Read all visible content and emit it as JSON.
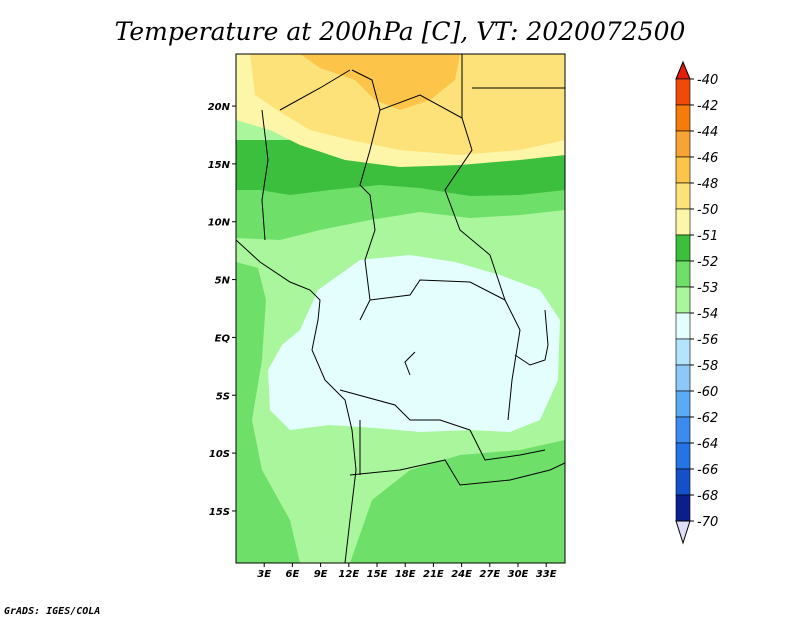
{
  "chart_data": {
    "type": "heatmap",
    "title": "Temperature at 200hPa [C], VT: 2020072500",
    "credit": "GrADS: IGES/COLA",
    "x_ticks": [
      "3E",
      "6E",
      "9E",
      "12E",
      "15E",
      "18E",
      "21E",
      "24E",
      "27E",
      "30E",
      "33E"
    ],
    "x_tick_values": [
      3,
      6,
      9,
      12,
      15,
      18,
      21,
      24,
      27,
      30,
      33
    ],
    "y_ticks": [
      "20N",
      "15N",
      "10N",
      "5N",
      "EQ",
      "5S",
      "10S",
      "15S"
    ],
    "y_tick_values": [
      20,
      15,
      10,
      5,
      0,
      -5,
      -10,
      -15
    ],
    "xlim": [
      0,
      35
    ],
    "ylim": [
      -19.5,
      24.5
    ],
    "colorbar": {
      "levels": [
        "-40",
        "-42",
        "-44",
        "-46",
        "-48",
        "-50",
        "-51",
        "-52",
        "-53",
        "-54",
        "-56",
        "-58",
        "-60",
        "-62",
        "-64",
        "-66",
        "-68",
        "-70"
      ],
      "colors": [
        "#e81c0a",
        "#f04a0a",
        "#f47c0c",
        "#f8a434",
        "#fcc448",
        "#fde27a",
        "#fdf6a8",
        "#3cbf3c",
        "#6ee06a",
        "#aaf69c",
        "#e4fefe",
        "#b4e4fc",
        "#8cc8f8",
        "#5aaaf4",
        "#3c8cf0",
        "#2474e4",
        "#1450c8",
        "#0a1e8c"
      ],
      "bottom_color": "#dedef8"
    },
    "fields": {
      "yellow_zone": "#fde27a",
      "orange_zone": "#fcc448",
      "pale_yellow_band": "#fdf6a8",
      "green_dark": "#3cbf3c",
      "green_mid": "#6ee06a",
      "green_light": "#aaf69c",
      "cyan_core": "#e4fefe"
    }
  }
}
